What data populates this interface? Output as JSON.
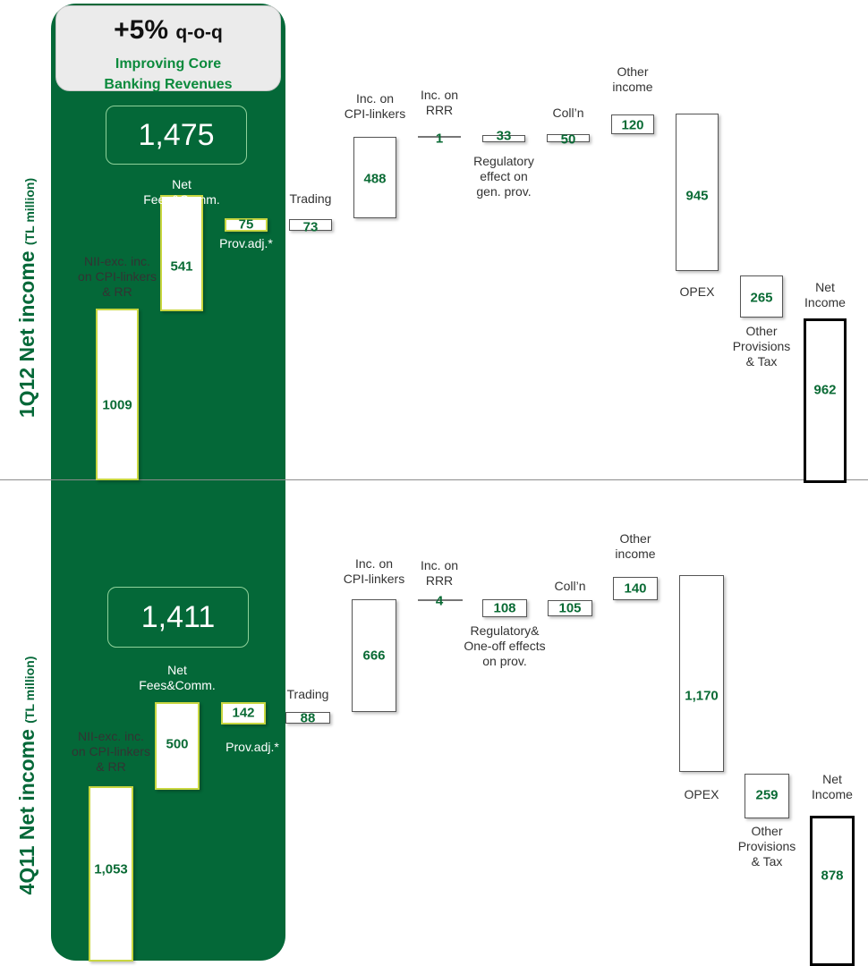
{
  "callout": {
    "headline": "+5%",
    "headline_suffix": "q-o-q",
    "subtitle_line1": "Improving Core",
    "subtitle_line2": "Banking Revenues"
  },
  "panels": [
    {
      "title": "1Q12 Net income",
      "unit": "(TL million)",
      "total": "1,475",
      "items": [
        {
          "key": "nii",
          "value": "1009",
          "label": "NII-exc. inc.\non CPI-linkers\n& RR",
          "style": "y"
        },
        {
          "key": "fees",
          "value": "541",
          "label": "Net\nFees&Comm.",
          "style": "y"
        },
        {
          "key": "prov",
          "value": "75",
          "label": "Prov.adj.*",
          "style": "y"
        },
        {
          "key": "trading",
          "value": "73",
          "label": "Trading",
          "style": "n"
        },
        {
          "key": "cpi",
          "value": "488",
          "label": "Inc. on\nCPI-linkers",
          "style": "n"
        },
        {
          "key": "rrr",
          "value": "1",
          "label": "Inc. on\nRRR",
          "style": "line"
        },
        {
          "key": "reg",
          "value": "33",
          "label": "Regulatory\neffect on\ngen. prov.",
          "style": "n"
        },
        {
          "key": "coll",
          "value": "50",
          "label": "Coll’n",
          "style": "n"
        },
        {
          "key": "other",
          "value": "120",
          "label": "Other\nincome",
          "style": "n"
        },
        {
          "key": "opex",
          "value": "945",
          "label": "OPEX",
          "style": "n"
        },
        {
          "key": "prov2",
          "value": "265",
          "label": "Other\nProvisions\n& Tax",
          "style": "n"
        },
        {
          "key": "net",
          "value": "962",
          "label": "Net\nIncome",
          "style": "k"
        }
      ]
    },
    {
      "title": "4Q11 Net income",
      "unit": "(TL million)",
      "total": "1,411",
      "items": [
        {
          "key": "nii",
          "value": "1,053",
          "label": "NII-exc. inc.\non CPI-linkers\n& RR",
          "style": "y"
        },
        {
          "key": "fees",
          "value": "500",
          "label": "Net\nFees&Comm.",
          "style": "y"
        },
        {
          "key": "prov",
          "value": "142",
          "label": "Prov.adj.*",
          "style": "y"
        },
        {
          "key": "trading",
          "value": "88",
          "label": "Trading",
          "style": "n"
        },
        {
          "key": "cpi",
          "value": "666",
          "label": "Inc. on\nCPI-linkers",
          "style": "n"
        },
        {
          "key": "rrr",
          "value": "4",
          "label": "Inc. on\nRRR",
          "style": "line"
        },
        {
          "key": "reg",
          "value": "108",
          "label": "Regulatory&\nOne-off effects\non prov.",
          "style": "n"
        },
        {
          "key": "coll",
          "value": "105",
          "label": "Coll’n",
          "style": "n"
        },
        {
          "key": "other",
          "value": "140",
          "label": "Other\nincome",
          "style": "n"
        },
        {
          "key": "opex",
          "value": "1,170",
          "label": "OPEX",
          "style": "n"
        },
        {
          "key": "prov2",
          "value": "259",
          "label": "Other\nProvisions\n& Tax",
          "style": "n"
        },
        {
          "key": "net",
          "value": "878",
          "label": "Net\nIncome",
          "style": "k"
        }
      ]
    }
  ],
  "chart_data": [
    {
      "type": "bar",
      "title": "1Q12 Net income",
      "ylabel": "(TL million)",
      "categories": [
        "NII-exc. inc. on CPI-linkers & RR",
        "Net Fees&Comm.",
        "Prov.adj.*",
        "Trading",
        "Inc. on CPI-linkers",
        "Inc. on RRR",
        "Regulatory effect on gen. prov.",
        "Coll’n",
        "Other income",
        "OPEX",
        "Other Provisions & Tax",
        "Net Income"
      ],
      "values": [
        1009,
        541,
        75,
        73,
        488,
        1,
        33,
        50,
        120,
        -945,
        -265,
        962
      ],
      "total_core_revenue": 1475
    },
    {
      "type": "bar",
      "title": "4Q11 Net income",
      "ylabel": "(TL million)",
      "categories": [
        "NII-exc. inc. on CPI-linkers & RR",
        "Net Fees&Comm.",
        "Prov.adj.*",
        "Trading",
        "Inc. on CPI-linkers",
        "Inc. on RRR",
        "Regulatory& One-off effects on prov.",
        "Coll’n",
        "Other income",
        "OPEX",
        "Other Provisions & Tax",
        "Net Income"
      ],
      "values": [
        1053,
        500,
        142,
        88,
        666,
        4,
        108,
        105,
        140,
        -1170,
        -259,
        878
      ],
      "total_core_revenue": 1411
    }
  ]
}
